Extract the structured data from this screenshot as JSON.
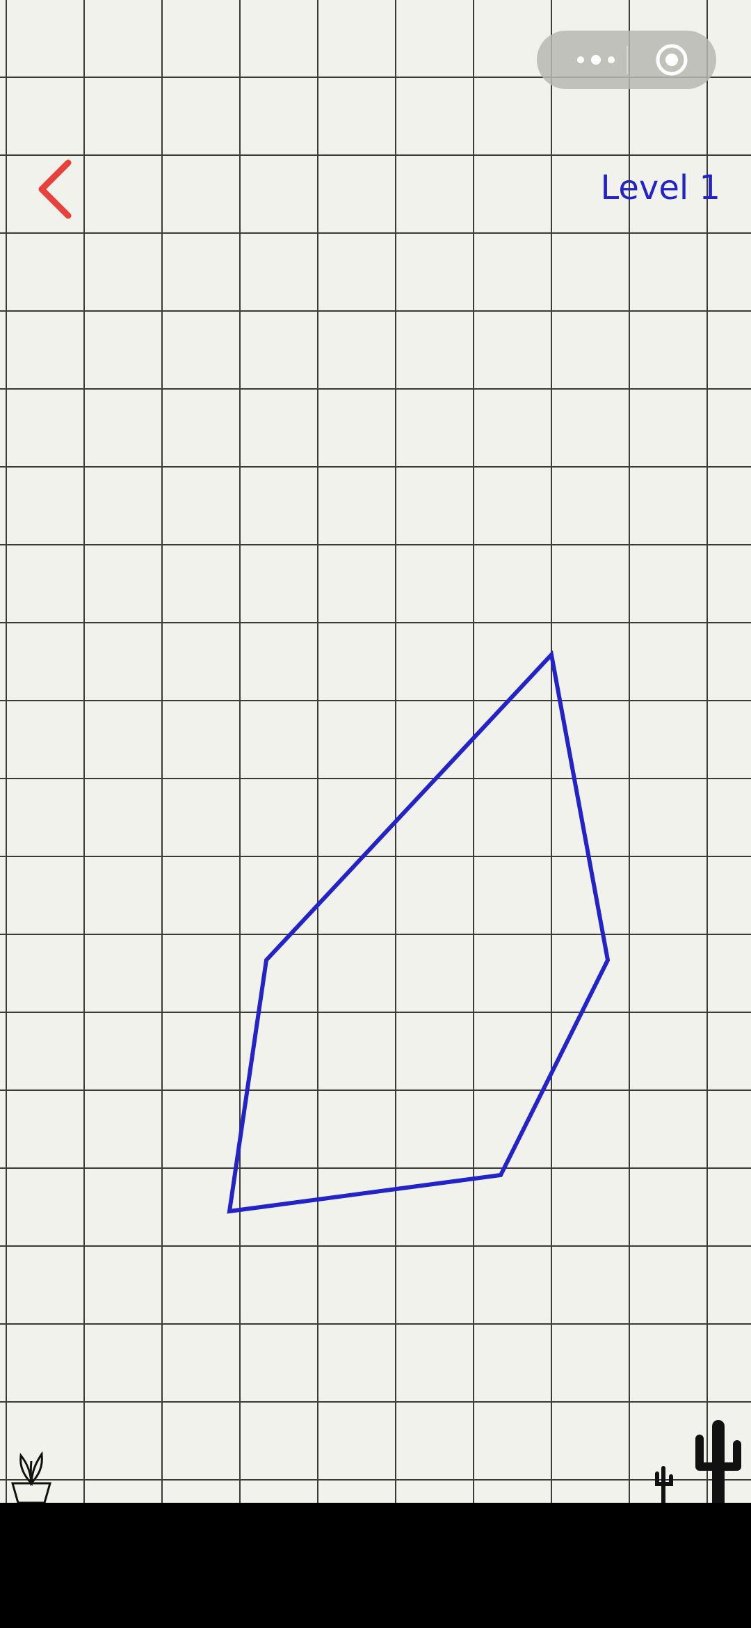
{
  "header": {
    "level_label": "Level 1",
    "back_icon": "chevron-left-icon",
    "back_color": "#e8403a",
    "level_color": "#2323c8"
  },
  "capsule": {
    "more_icon": "more-dots-icon",
    "close_icon": "target-circle-icon"
  },
  "board": {
    "background": "#f2f2ec",
    "grid_color": "#3a3a3a",
    "shape_color": "#2323c8"
  },
  "decorations": [
    "plant-icon",
    "cactus-small-icon",
    "cactus-large-icon"
  ]
}
